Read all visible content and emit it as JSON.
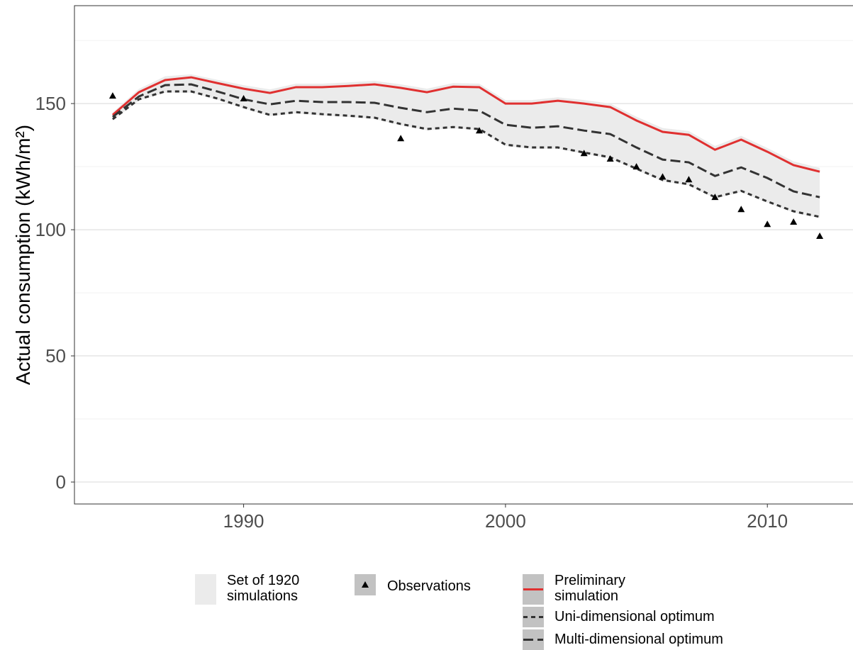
{
  "chart_data": {
    "type": "line",
    "y_label": "Actual consumption (kWh/m²)",
    "x": [
      1985,
      1986,
      1987,
      1988,
      1989,
      1990,
      1991,
      1992,
      1993,
      1994,
      1995,
      1996,
      1997,
      1998,
      1999,
      2000,
      2001,
      2002,
      2003,
      2004,
      2005,
      2006,
      2007,
      2008,
      2009,
      2010,
      2011,
      2012
    ],
    "xlim": [
      1983.54,
      2013.46
    ],
    "xticks": [
      1990,
      2000,
      2010
    ],
    "ylim": [
      -8.7,
      188.8
    ],
    "yticks": [
      0,
      50,
      100,
      150
    ],
    "yminor": [
      25,
      75,
      125,
      175
    ],
    "grid": true,
    "band": {
      "name": "Set of 1920\n simulations",
      "color": "#ebebeb",
      "upper": [
        146.5,
        155.8,
        160.8,
        161.6,
        159.4,
        157.3,
        155.6,
        157.9,
        157.9,
        158.4,
        159,
        157.6,
        155.9,
        158.1,
        157.9,
        151.4,
        151.4,
        152.5,
        151.4,
        150,
        144.8,
        140.3,
        139.1,
        133.2,
        137.2,
        132.4,
        127.1,
        124.5
      ],
      "lower": [
        143.3,
        151.2,
        154.3,
        154.3,
        151.5,
        148.1,
        145,
        146.1,
        145.3,
        144.7,
        143.9,
        141.4,
        139.4,
        140.2,
        139.4,
        133.2,
        132.1,
        132.1,
        130.1,
        128.2,
        123.7,
        119.2,
        117.5,
        112.4,
        114.9,
        110.7,
        106.8,
        104.6
      ]
    },
    "series": [
      {
        "name": "Observations",
        "kind": "points",
        "color": "#000000",
        "values": [
          153.1,
          null,
          null,
          null,
          null,
          152,
          null,
          null,
          null,
          null,
          null,
          136.2,
          null,
          null,
          139.3,
          null,
          null,
          null,
          130.3,
          128.1,
          125,
          121,
          119.9,
          112.9,
          108.1,
          102.2,
          103.1,
          97.5
        ]
      },
      {
        "name": "Preliminary\n simulation",
        "kind": "line",
        "dash": "solid",
        "color": "#e03030",
        "values": [
          145.5,
          154.5,
          159.3,
          160.4,
          158.1,
          155.9,
          154.2,
          156.5,
          156.5,
          157,
          157.6,
          156.2,
          154.5,
          156.7,
          156.5,
          150,
          150,
          151.1,
          150,
          148.6,
          143.3,
          138.8,
          137.6,
          131.7,
          135.7,
          130.9,
          125.6,
          123
        ]
      },
      {
        "name": "Uni-dimensional optimum",
        "kind": "line",
        "dash": "short",
        "color": "#333333",
        "values": [
          143.8,
          151.7,
          154.8,
          154.8,
          152,
          148.6,
          145.5,
          146.6,
          145.8,
          145.2,
          144.4,
          141.9,
          139.9,
          140.7,
          139.9,
          133.7,
          132.6,
          132.6,
          130.6,
          128.7,
          124.2,
          119.7,
          118,
          112.9,
          115.4,
          111.2,
          107.3,
          105.1
        ]
      },
      {
        "name": "Multi-dimensional optimum",
        "kind": "line",
        "dash": "long",
        "color": "#333333",
        "values": [
          144.7,
          152.8,
          157.3,
          157.6,
          154.8,
          151.7,
          149.7,
          151.1,
          150.6,
          150.6,
          150.3,
          148.3,
          146.6,
          148,
          147.2,
          141.6,
          140.4,
          141,
          139.3,
          137.9,
          132.6,
          127.8,
          126.7,
          121.3,
          124.7,
          120.5,
          115.2,
          112.9
        ]
      }
    ]
  }
}
